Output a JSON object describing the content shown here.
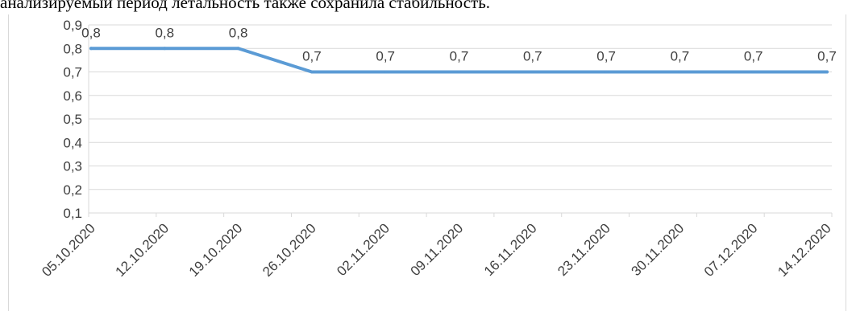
{
  "caption": "анализируемый период летальность также сохранила стабильность.",
  "chart_data": {
    "type": "line",
    "title": "",
    "xlabel": "",
    "ylabel": "",
    "categories": [
      "05.10.2020",
      "12.10.2020",
      "19.10.2020",
      "26.10.2020",
      "02.11.2020",
      "09.11.2020",
      "16.11.2020",
      "23.11.2020",
      "30.11.2020",
      "07.12.2020",
      "14.12.2020"
    ],
    "series": [
      {
        "values": [
          0.8,
          0.8,
          0.8,
          0.7,
          0.7,
          0.7,
          0.7,
          0.7,
          0.7,
          0.7,
          0.7
        ],
        "color": "#5b9bd5"
      }
    ],
    "data_labels": [
      "0,8",
      "0,8",
      "0,8",
      "0,7",
      "0,7",
      "0,7",
      "0,7",
      "0,7",
      "0,7",
      "0,7",
      "0,7"
    ],
    "y_ticks": [
      "0,1",
      "0,2",
      "0,3",
      "0,4",
      "0,5",
      "0,6",
      "0,7",
      "0,8",
      "0,9"
    ],
    "ylim": [
      0.1,
      0.9
    ],
    "grid": true,
    "legend": "none"
  }
}
